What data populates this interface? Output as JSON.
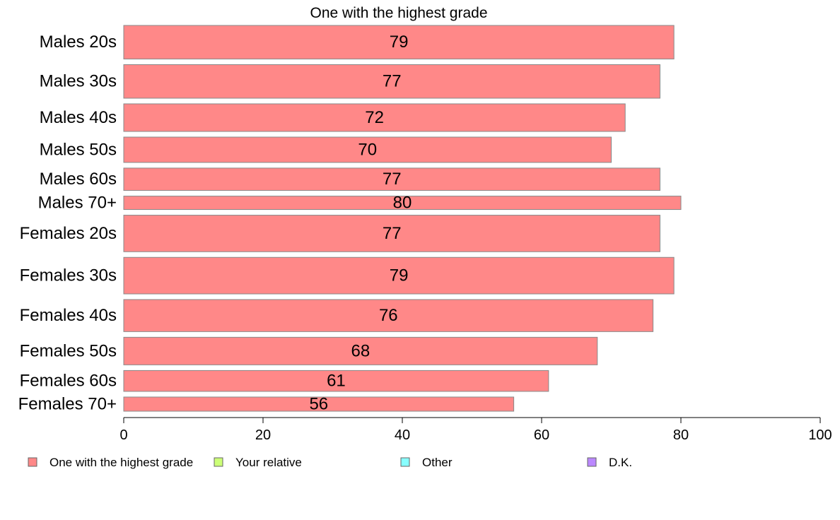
{
  "chart_data": {
    "type": "bar",
    "orientation": "horizontal",
    "title": "One with the highest grade",
    "xlabel": "",
    "ylabel": "",
    "xlim": [
      0,
      100
    ],
    "xticks": [
      "0",
      "20",
      "40",
      "60",
      "80",
      "100"
    ],
    "grid": false,
    "legend_position": "bottom",
    "categories": [
      "Males 20s",
      "Males 30s",
      "Males 40s",
      "Males 50s",
      "Males 60s",
      "Males 70+",
      "Females 20s",
      "Females 30s",
      "Females 40s",
      "Females 50s",
      "Females 60s",
      "Females 70+"
    ],
    "series": [
      {
        "name": "One with the highest grade",
        "color": "#ff8888",
        "values": [
          79,
          77,
          72,
          70,
          77,
          80,
          77,
          79,
          76,
          68,
          61,
          56
        ]
      }
    ],
    "legend": [
      {
        "name": "One with the highest grade",
        "color": "#ff8888"
      },
      {
        "name": "Your relative",
        "color": "#ccff77"
      },
      {
        "name": "Other",
        "color": "#88ffff"
      },
      {
        "name": "D.K.",
        "color": "#bb88ff"
      }
    ],
    "bar_widths": [
      45,
      45,
      37,
      34,
      30,
      18,
      49,
      49,
      43,
      37,
      28,
      19
    ]
  }
}
